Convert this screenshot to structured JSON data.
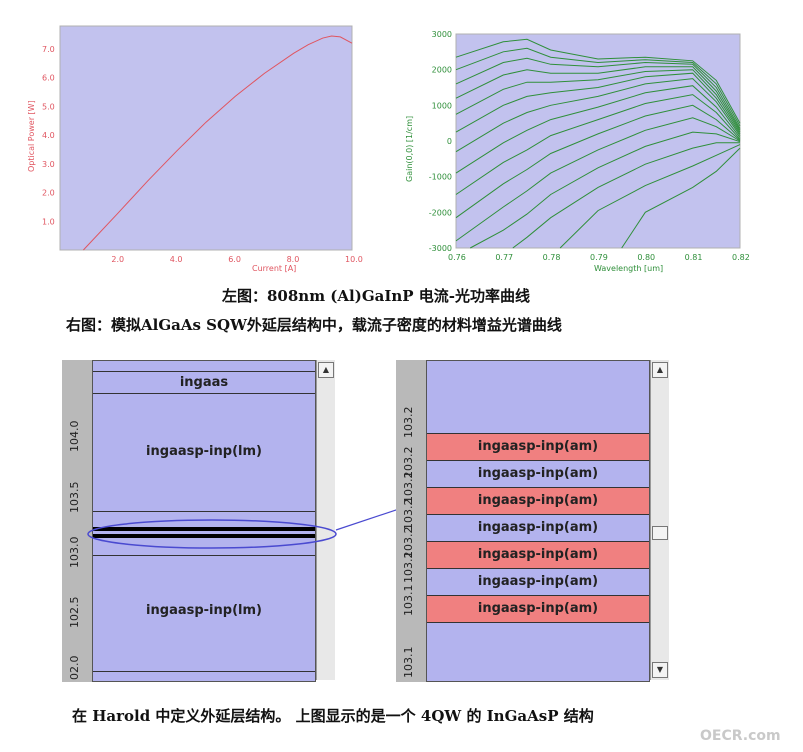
{
  "top_left_chart": {
    "ylabel": "Optical Power [W]",
    "xlabel": "Current [A]",
    "xticks": [
      "2.0",
      "4.0",
      "6.0",
      "8.0",
      "10.0"
    ],
    "yticks": [
      "1.0",
      "2.0",
      "3.0",
      "4.0",
      "5.0",
      "6.0",
      "7.0"
    ],
    "line_color": "#e05560"
  },
  "top_right_chart": {
    "ylabel": "Gain(0,0) [1/cm]",
    "xlabel": "Wavelength [um]",
    "xticks": [
      "0.76",
      "0.77",
      "0.78",
      "0.79",
      "0.80",
      "0.81",
      "0.82"
    ],
    "yticks": [
      "3000",
      "2000",
      "1000",
      "0",
      "-1000",
      "-2000",
      "-3000"
    ],
    "line_color": "#2f8f3a"
  },
  "chart_data": [
    {
      "type": "line",
      "xlabel": "Current [A]",
      "ylabel": "Optical Power [W]",
      "xlim": [
        0,
        10
      ],
      "ylim": [
        0,
        7.8
      ],
      "series": [
        {
          "x": [
            0.8,
            2,
            3,
            4,
            5,
            6,
            7,
            8,
            8.5,
            9,
            9.3,
            9.6,
            10
          ],
          "values": [
            0,
            1.3,
            2.4,
            3.45,
            4.45,
            5.35,
            6.15,
            6.85,
            7.15,
            7.38,
            7.45,
            7.42,
            7.2
          ]
        }
      ]
    },
    {
      "type": "line",
      "xlabel": "Wavelength [um]",
      "ylabel": "Gain(0,0) [1/cm]",
      "xlim": [
        0.76,
        0.82
      ],
      "ylim": [
        -3000,
        3000
      ],
      "series": [
        {
          "x": [
            0.76,
            0.77,
            0.775,
            0.78,
            0.79,
            0.8,
            0.81,
            0.815,
            0.82
          ],
          "values": [
            2350,
            2780,
            2850,
            2550,
            2300,
            2350,
            2250,
            1700,
            500
          ]
        },
        {
          "x": [
            0.76,
            0.77,
            0.775,
            0.78,
            0.79,
            0.8,
            0.81,
            0.815,
            0.82
          ],
          "values": [
            2000,
            2500,
            2600,
            2350,
            2200,
            2280,
            2200,
            1600,
            420
          ]
        },
        {
          "x": [
            0.76,
            0.77,
            0.775,
            0.78,
            0.79,
            0.8,
            0.81,
            0.815,
            0.82
          ],
          "values": [
            1600,
            2200,
            2320,
            2150,
            2080,
            2200,
            2150,
            1500,
            350
          ]
        },
        {
          "x": [
            0.76,
            0.77,
            0.775,
            0.78,
            0.79,
            0.8,
            0.81,
            0.815,
            0.82
          ],
          "values": [
            1200,
            1850,
            2000,
            1900,
            1900,
            2080,
            2080,
            1400,
            300
          ]
        },
        {
          "x": [
            0.76,
            0.77,
            0.775,
            0.78,
            0.79,
            0.8,
            0.81,
            0.815,
            0.82
          ],
          "values": [
            750,
            1450,
            1650,
            1650,
            1720,
            1950,
            2000,
            1300,
            250
          ]
        },
        {
          "x": [
            0.76,
            0.77,
            0.775,
            0.78,
            0.79,
            0.8,
            0.81,
            0.815,
            0.82
          ],
          "values": [
            250,
            1000,
            1250,
            1350,
            1500,
            1800,
            1900,
            1200,
            200
          ]
        },
        {
          "x": [
            0.76,
            0.77,
            0.775,
            0.78,
            0.79,
            0.8,
            0.81,
            0.815,
            0.82
          ],
          "values": [
            -300,
            500,
            800,
            1000,
            1250,
            1600,
            1750,
            1100,
            150
          ]
        },
        {
          "x": [
            0.76,
            0.77,
            0.775,
            0.78,
            0.79,
            0.8,
            0.81,
            0.815,
            0.82
          ],
          "values": [
            -900,
            -50,
            300,
            600,
            950,
            1350,
            1550,
            950,
            100
          ]
        },
        {
          "x": [
            0.76,
            0.77,
            0.775,
            0.78,
            0.79,
            0.8,
            0.81,
            0.815,
            0.82
          ],
          "values": [
            -1500,
            -600,
            -250,
            150,
            600,
            1050,
            1300,
            800,
            50
          ]
        },
        {
          "x": [
            0.76,
            0.77,
            0.775,
            0.78,
            0.79,
            0.8,
            0.81,
            0.815,
            0.82
          ],
          "values": [
            -2150,
            -1200,
            -800,
            -350,
            200,
            700,
            1000,
            600,
            20
          ]
        },
        {
          "x": [
            0.76,
            0.77,
            0.775,
            0.78,
            0.79,
            0.8,
            0.81,
            0.815,
            0.82
          ],
          "values": [
            -2800,
            -1850,
            -1400,
            -900,
            -250,
            300,
            650,
            400,
            0
          ]
        },
        {
          "x": [
            0.763,
            0.77,
            0.775,
            0.78,
            0.79,
            0.8,
            0.81,
            0.815,
            0.82
          ],
          "values": [
            -3000,
            -2500,
            -2050,
            -1500,
            -750,
            -150,
            250,
            200,
            -20
          ]
        },
        {
          "x": [
            0.772,
            0.775,
            0.78,
            0.79,
            0.8,
            0.81,
            0.815,
            0.82
          ],
          "values": [
            -3000,
            -2700,
            -2150,
            -1300,
            -650,
            -200,
            -50,
            -50
          ]
        },
        {
          "x": [
            0.782,
            0.79,
            0.8,
            0.81,
            0.815,
            0.82
          ],
          "values": [
            -3000,
            -1950,
            -1250,
            -700,
            -400,
            -100
          ]
        },
        {
          "x": [
            0.795,
            0.8,
            0.81,
            0.815,
            0.82
          ],
          "values": [
            -3000,
            -2000,
            -1300,
            -850,
            -200
          ]
        }
      ]
    }
  ],
  "captions": {
    "top_line1": "左图：808nm (Al)GaInP  电流-光功率曲线",
    "top_line2": "右图：模拟AlGaAs SQW外延层结构中，载流子密度的材料增益光谱曲线",
    "bottom": "在 Harold 中定义外延层结构。 上图显示的是一个 4QW 的 InGaAsP 结构"
  },
  "left_structure": {
    "ruler_labels": [
      "104.0",
      "103.5",
      "103.0",
      "102.5",
      "02.0"
    ],
    "layers": {
      "top": "ingaas",
      "middle": "ingaasp-inp(lm)",
      "bottom": "ingaasp-inp(lm)"
    }
  },
  "right_structure": {
    "ruler_labels": [
      "103.2",
      "103.2",
      "103.2",
      "103.2",
      "103.2",
      "103.2",
      "103.1",
      "103.1"
    ],
    "layers": [
      {
        "label": "ingaasp-inp(am)",
        "color": "#f08080"
      },
      {
        "label": "ingaasp-inp(am)",
        "color": "#b3b3ee"
      },
      {
        "label": "ingaasp-inp(am)",
        "color": "#f08080"
      },
      {
        "label": "ingaasp-inp(am)",
        "color": "#b3b3ee"
      },
      {
        "label": "ingaasp-inp(am)",
        "color": "#f08080"
      },
      {
        "label": "ingaasp-inp(am)",
        "color": "#b3b3ee"
      },
      {
        "label": "ingaasp-inp(am)",
        "color": "#f08080"
      }
    ]
  },
  "watermark": "OECR.com"
}
